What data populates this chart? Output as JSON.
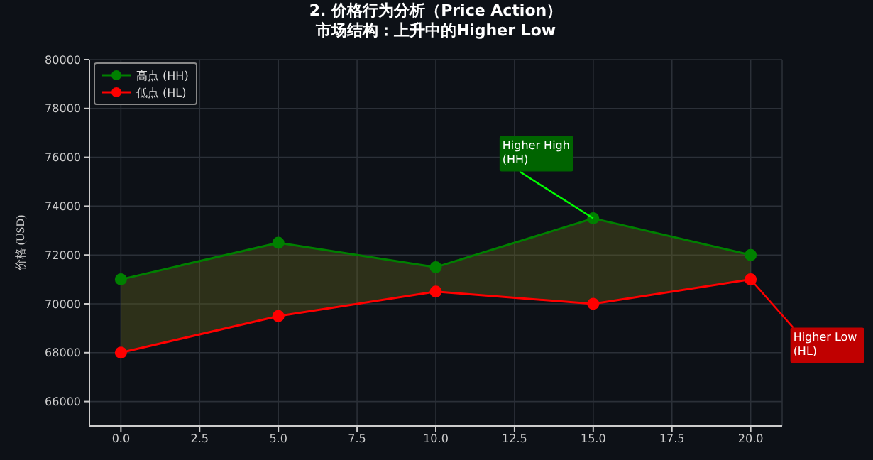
{
  "chart_data": {
    "type": "line",
    "title": "2. 价格行为分析（Price Action）",
    "subtitle": "市场结构：上升中的Higher Low",
    "ylabel": "价格 (USD)",
    "x": [
      0,
      5,
      10,
      15,
      20
    ],
    "series": [
      {
        "name": "高点 (HH)",
        "color": "#008000",
        "values": [
          71000,
          72500,
          71500,
          73500,
          72000
        ],
        "lower": [
          68000,
          69500,
          70500,
          70000,
          71000
        ],
        "upper": [
          71000,
          72500,
          71500,
          73500,
          72000
        ]
      },
      {
        "name": "低点 (HL)",
        "color": "#ff0000",
        "values": [
          68000,
          69500,
          70500,
          70000,
          71000
        ]
      }
    ],
    "xlim": [
      -1,
      21
    ],
    "xticks": [
      {
        "value": 0,
        "label": "0.0"
      },
      {
        "value": 2.5,
        "label": "2.5"
      },
      {
        "value": 5,
        "label": "5.0"
      },
      {
        "value": 7.5,
        "label": "7.5"
      },
      {
        "value": 10,
        "label": "10.0"
      },
      {
        "value": 12.5,
        "label": "12.5"
      },
      {
        "value": 15,
        "label": "15.0"
      },
      {
        "value": 17.5,
        "label": "17.5"
      },
      {
        "value": 20,
        "label": "20.0"
      }
    ],
    "ylim": [
      65000,
      80000
    ],
    "yticks": [
      66000,
      68000,
      70000,
      72000,
      74000,
      76000,
      78000,
      80000
    ],
    "annotations": [
      {
        "text": "Higher High\n(HH)",
        "x": 15,
        "y": 73500
      },
      {
        "text": "Higher Low\n(HL)",
        "x": 20,
        "y": 71000
      }
    ],
    "grid": true,
    "legend": "top left",
    "marker": "circle",
    "line_style": "solid"
  }
}
